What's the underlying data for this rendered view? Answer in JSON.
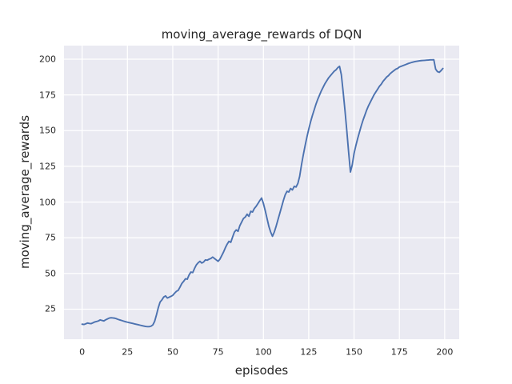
{
  "figure": {
    "title": "moving_average_rewards of DQN",
    "xlabel": "episodes",
    "ylabel": "moving_average_rewards"
  },
  "colors": {
    "figure_background": "#ffffff",
    "axes_background": "#eaeaf2",
    "grid": "#ffffff",
    "line": "#4c72b0",
    "text": "#262626"
  },
  "chart_data": {
    "type": "line",
    "title": "moving_average_rewards of DQN",
    "xlabel": "episodes",
    "ylabel": "moving_average_rewards",
    "xlim": [
      -10,
      208
    ],
    "ylim": [
      4,
      209.5
    ],
    "xticks": [
      0,
      25,
      50,
      75,
      100,
      125,
      150,
      175,
      200
    ],
    "yticks": [
      25,
      50,
      75,
      100,
      125,
      150,
      175,
      200
    ],
    "grid": true,
    "legend": false,
    "series": [
      {
        "name": "moving_average_rewards",
        "color": "#4c72b0",
        "x": [
          0,
          1,
          2,
          3,
          4,
          5,
          6,
          7,
          8,
          9,
          10,
          11,
          12,
          13,
          14,
          15,
          16,
          17,
          18,
          19,
          20,
          21,
          22,
          23,
          24,
          25,
          26,
          27,
          28,
          29,
          30,
          31,
          32,
          33,
          34,
          35,
          36,
          37,
          38,
          39,
          40,
          41,
          42,
          43,
          44,
          45,
          46,
          47,
          48,
          49,
          50,
          51,
          52,
          53,
          54,
          55,
          56,
          57,
          58,
          59,
          60,
          61,
          62,
          63,
          64,
          65,
          66,
          67,
          68,
          69,
          70,
          71,
          72,
          73,
          74,
          75,
          76,
          77,
          78,
          79,
          80,
          81,
          82,
          83,
          84,
          85,
          86,
          87,
          88,
          89,
          90,
          91,
          92,
          93,
          94,
          95,
          96,
          97,
          98,
          99,
          100,
          101,
          102,
          103,
          104,
          105,
          106,
          107,
          108,
          109,
          110,
          111,
          112,
          113,
          114,
          115,
          116,
          117,
          118,
          119,
          120,
          121,
          122,
          123,
          124,
          125,
          126,
          127,
          128,
          129,
          130,
          131,
          132,
          133,
          134,
          135,
          136,
          137,
          138,
          139,
          140,
          141,
          142,
          143,
          144,
          145,
          146,
          147,
          148,
          149,
          150,
          151,
          152,
          153,
          154,
          155,
          156,
          157,
          158,
          159,
          160,
          161,
          162,
          163,
          164,
          165,
          166,
          167,
          168,
          169,
          170,
          171,
          172,
          173,
          174,
          175,
          176,
          177,
          178,
          179,
          180,
          181,
          182,
          183,
          184,
          185,
          186,
          187,
          188,
          189,
          190,
          191,
          192,
          193,
          194,
          195,
          196,
          197,
          198,
          199
        ],
        "y": [
          14.5,
          14.3,
          14.8,
          15.3,
          15.0,
          14.9,
          15.5,
          16.1,
          16.4,
          16.8,
          17.5,
          17.1,
          16.8,
          17.6,
          18.2,
          18.8,
          19.0,
          18.9,
          18.7,
          18.3,
          17.8,
          17.4,
          17.0,
          16.6,
          16.2,
          15.9,
          15.6,
          15.3,
          15.0,
          14.7,
          14.4,
          14.1,
          13.8,
          13.5,
          13.2,
          12.9,
          12.8,
          12.8,
          13.1,
          14.0,
          16.5,
          21.0,
          26.0,
          30.0,
          31.5,
          33.5,
          34.3,
          32.8,
          33.4,
          34.0,
          34.7,
          36.2,
          37.5,
          38.2,
          40.5,
          43.0,
          44.5,
          46.3,
          46.0,
          49.0,
          51.0,
          50.6,
          53.5,
          56.0,
          57.5,
          58.5,
          57.3,
          58.0,
          59.5,
          59.3,
          60.0,
          60.5,
          61.5,
          60.5,
          59.5,
          58.5,
          60.0,
          62.5,
          65.0,
          68.0,
          70.5,
          72.5,
          71.8,
          75.5,
          79.0,
          80.5,
          79.5,
          83.5,
          86.0,
          88.5,
          89.5,
          91.5,
          90.0,
          93.5,
          93.0,
          95.5,
          97.0,
          99.0,
          101.0,
          102.8,
          99.0,
          94.0,
          88.5,
          83.0,
          79.0,
          76.0,
          79.0,
          83.0,
          87.5,
          92.0,
          96.5,
          101.0,
          105.0,
          107.5,
          107.0,
          109.5,
          108.5,
          111.0,
          110.5,
          113.0,
          118.0,
          126.0,
          133.0,
          139.5,
          145.5,
          151.0,
          156.0,
          160.5,
          164.5,
          168.5,
          172.0,
          175.0,
          178.0,
          180.5,
          183.0,
          185.0,
          187.0,
          188.5,
          190.0,
          191.5,
          192.5,
          194.0,
          195.0,
          189.0,
          177.0,
          164.0,
          150.0,
          135.0,
          121.0,
          126.0,
          134.0,
          139.5,
          144.5,
          149.0,
          153.5,
          157.5,
          161.0,
          164.5,
          167.5,
          170.0,
          172.5,
          175.0,
          177.0,
          179.0,
          181.0,
          182.5,
          184.5,
          186.0,
          187.5,
          188.5,
          190.0,
          191.0,
          192.0,
          193.0,
          193.5,
          194.5,
          195.0,
          195.5,
          196.0,
          196.5,
          197.0,
          197.4,
          197.8,
          198.1,
          198.4,
          198.6,
          198.8,
          199.0,
          199.1,
          199.2,
          199.3,
          199.4,
          199.5,
          199.5,
          199.6,
          193.0,
          191.3,
          190.8,
          192.0,
          193.5
        ]
      }
    ]
  }
}
